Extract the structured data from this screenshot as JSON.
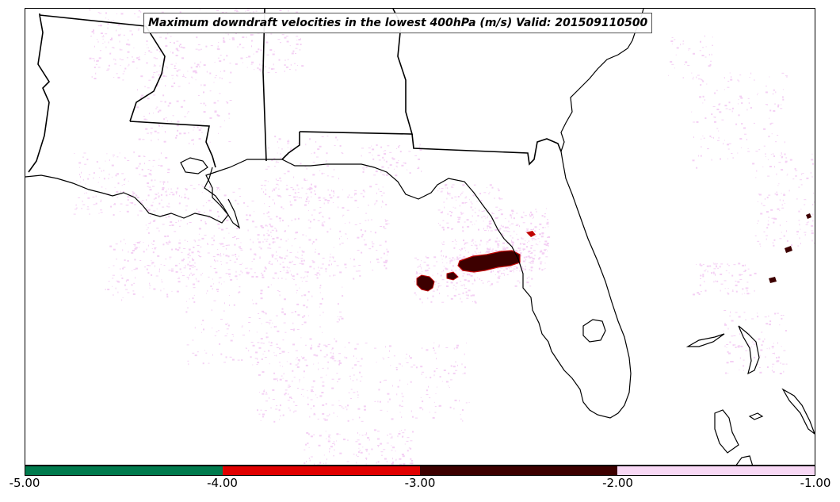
{
  "map": {
    "title": "Maximum downdraft velocities in the lowest 400hPa (m/s) Valid: 201509110500",
    "colorbar": {
      "segments": [
        {
          "from": -5.0,
          "to": -4.0,
          "color": "#007a4d"
        },
        {
          "from": -4.0,
          "to": -3.0,
          "color": "#e00000"
        },
        {
          "from": -3.0,
          "to": -2.0,
          "color": "#3d0000"
        },
        {
          "from": -2.0,
          "to": -1.0,
          "color": "#f8d8f5"
        }
      ],
      "tick_labels": [
        "-5.00",
        "-4.00",
        "-3.00",
        "-2.00",
        "-1.00"
      ]
    },
    "colors": {
      "light_field": "#f4d0f4",
      "strong_core": "#3d0000",
      "moderate": "#c00000",
      "coastline": "#000000"
    }
  }
}
